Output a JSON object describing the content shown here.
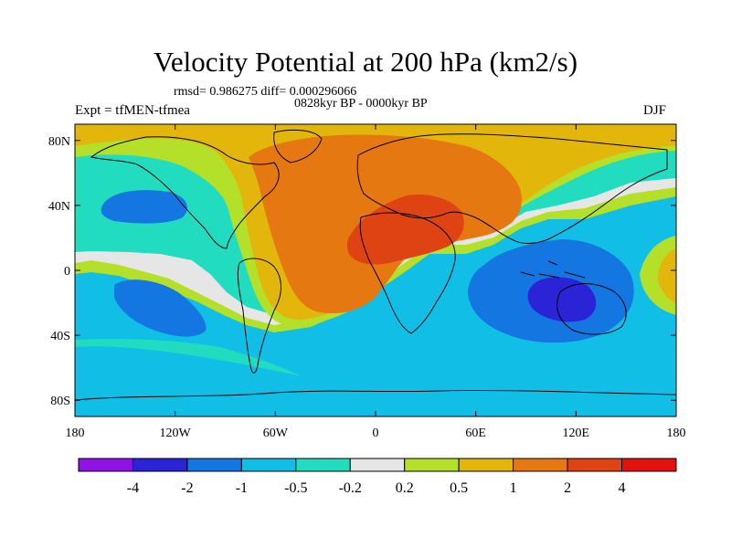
{
  "chart_data": {
    "type": "heatmap",
    "title": "Velocity Potential at 200 hPa (km2/s)",
    "stats_line": "rmsd= 0.986275 diff= 0.000296066",
    "period": "0828kyr BP - 0000kyr BP",
    "experiment": "Expt = tfMEN-tfmea",
    "season": "DJF",
    "projection": "cylindrical equidistant, global",
    "x_ticks": [
      "180",
      "120W",
      "60W",
      "0",
      "60E",
      "120E",
      "180"
    ],
    "y_ticks": [
      "80N",
      "40N",
      "0",
      "40S",
      "80S"
    ],
    "xlim": [
      -180,
      180
    ],
    "ylim": [
      -90,
      90
    ],
    "colorbar": {
      "levels": [
        -4,
        -2,
        -1,
        -0.5,
        -0.2,
        0.2,
        0.5,
        1,
        2,
        4
      ],
      "tick_labels": [
        "-4",
        "-2",
        "-1",
        "-0.5",
        "-0.2",
        "0.2",
        "0.5",
        "1",
        "2",
        "4"
      ],
      "colors": [
        "#8f12e6",
        "#2a24d6",
        "#1476e0",
        "#11bee6",
        "#22dcc0",
        "#e6e6e6",
        "#b5e02a",
        "#e3b60c",
        "#e57811",
        "#df4213",
        "#e3120f"
      ]
    }
  }
}
